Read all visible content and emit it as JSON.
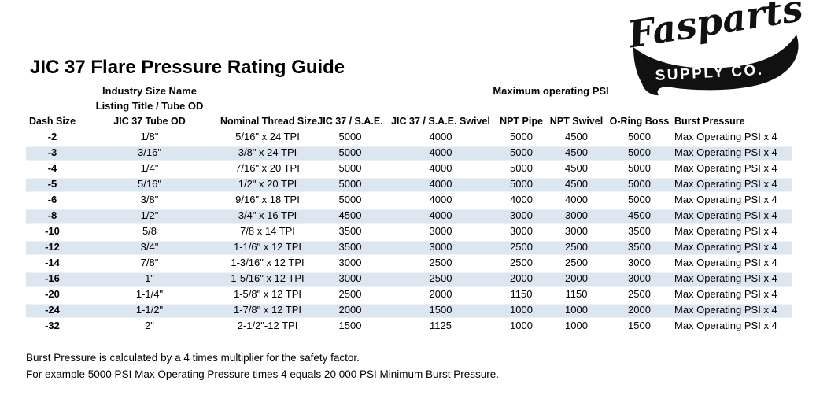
{
  "logo": {
    "brand": "Fasparts",
    "sub": "SUPPLY CO.",
    "color": "#111111"
  },
  "title": "JIC 37 Flare Pressure Rating Guide",
  "table": {
    "pre_headers": {
      "industry_line1": "Industry Size Name",
      "industry_line2": "Listing Title / Tube OD",
      "max_psi": "Maximum operating PSI"
    },
    "columns": [
      "Dash Size",
      "JIC 37 Tube OD",
      "Nominal Thread Size",
      "JIC 37 / S.A.E.",
      "JIC 37 / S.A.E. Swivel",
      "NPT Pipe",
      "NPT Swivel",
      "O-Ring Boss",
      "Burst Pressure"
    ],
    "rows": [
      [
        "-2",
        "1/8\"",
        "5/16\" x 24 TPI",
        "5000",
        "4000",
        "5000",
        "4500",
        "5000",
        "Max Operating PSI x 4"
      ],
      [
        "-3",
        "3/16\"",
        "3/8\" x 24 TPI",
        "5000",
        "4000",
        "5000",
        "4500",
        "5000",
        "Max Operating PSI x 4"
      ],
      [
        "-4",
        "1/4\"",
        "7/16\" x 20 TPI",
        "5000",
        "4000",
        "5000",
        "4500",
        "5000",
        "Max Operating PSI x 4"
      ],
      [
        "-5",
        "5/16\"",
        "1/2\" x 20 TPI",
        "5000",
        "4000",
        "5000",
        "4500",
        "5000",
        "Max Operating PSI x 4"
      ],
      [
        "-6",
        "3/8\"",
        "9/16\" x 18 TPI",
        "5000",
        "4000",
        "4000",
        "4000",
        "5000",
        "Max Operating PSI x 4"
      ],
      [
        "-8",
        "1/2\"",
        "3/4\" x 16 TPI",
        "4500",
        "4000",
        "3000",
        "3000",
        "4500",
        "Max Operating PSI x 4"
      ],
      [
        "-10",
        "5/8",
        "7/8 x 14 TPI",
        "3500",
        "3000",
        "3000",
        "3000",
        "3500",
        "Max Operating PSI x 4"
      ],
      [
        "-12",
        "3/4\"",
        "1-1/6\" x 12 TPI",
        "3500",
        "3000",
        "2500",
        "2500",
        "3500",
        "Max Operating PSI x 4"
      ],
      [
        "-14",
        "7/8\"",
        "1-3/16\" x 12 TPI",
        "3000",
        "2500",
        "2500",
        "2500",
        "3000",
        "Max Operating PSI x 4"
      ],
      [
        "-16",
        "1\"",
        "1-5/16\" x 12 TPI",
        "3000",
        "2500",
        "2000",
        "2000",
        "3000",
        "Max Operating PSI x 4"
      ],
      [
        "-20",
        "1-1/4\"",
        "1-5/8\" x 12 TPI",
        "2500",
        "2000",
        "1150",
        "1150",
        "2500",
        "Max Operating PSI x 4"
      ],
      [
        "-24",
        "1-1/2\"",
        "1-7/8\" x 12 TPI",
        "2000",
        "1500",
        "1000",
        "1000",
        "2000",
        "Max Operating PSI x 4"
      ],
      [
        "-32",
        "2\"",
        "2-1/2\"-12 TPI",
        "1500",
        "1125",
        "1000",
        "1000",
        "1500",
        "Max Operating PSI x 4"
      ]
    ]
  },
  "footer": {
    "line1": "Burst Pressure is calculated by a 4 times multiplier for the safety factor.",
    "line2": "For example 5000 PSI Max Operating Pressure times 4 equals 20 000 PSI Minimum Burst Pressure."
  },
  "colors": {
    "row_stripe": "#dce6f1",
    "text": "#000000"
  }
}
